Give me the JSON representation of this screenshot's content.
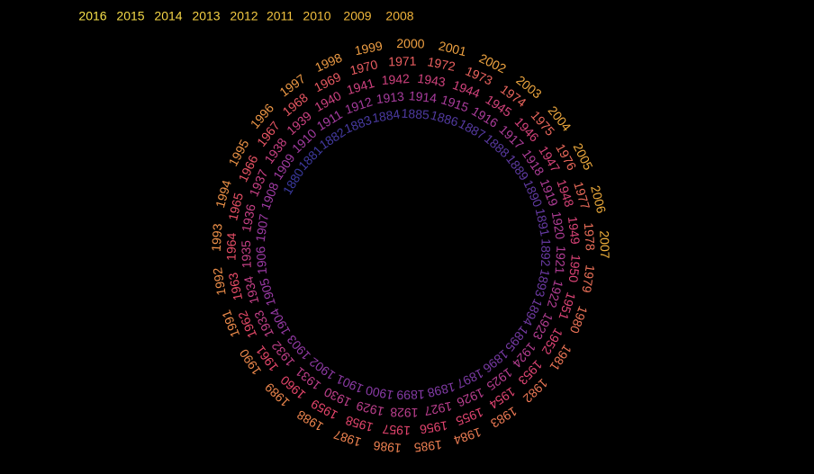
{
  "title_years": [
    "2016",
    "2015",
    "2014",
    "2013",
    "2012",
    "2011",
    "2010",
    "2009",
    "2008"
  ],
  "spiral_years_start": 1880,
  "spiral_years_end": 2007,
  "palette": {
    "background": "#000000",
    "early": "#3b3aa0",
    "mid": "#9b3aa6",
    "late": "#e8456b",
    "latest": "#f0b23a",
    "newest": "#f6e04a"
  }
}
